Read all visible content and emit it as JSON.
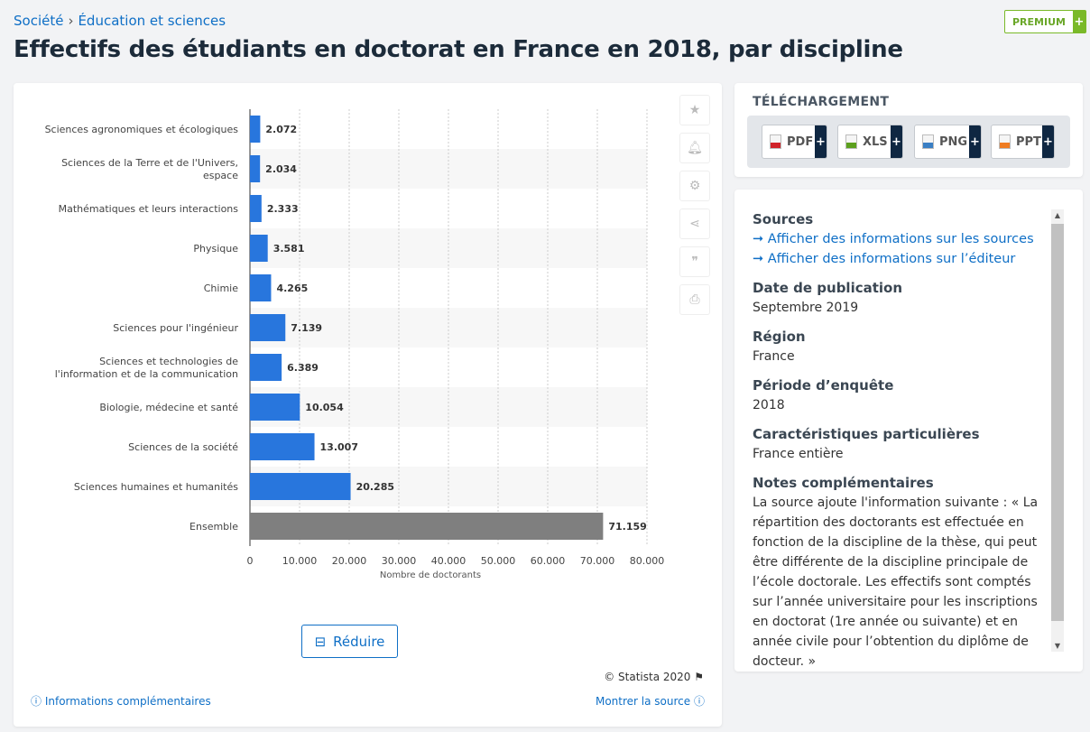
{
  "breadcrumb": [
    "Société",
    "Éducation et sciences"
  ],
  "title": "Effectifs des étudiants en doctorat en France en 2018, par discipline",
  "premium": {
    "label": "PREMIUM",
    "plus": "+"
  },
  "chart_data": {
    "type": "bar",
    "orientation": "horizontal",
    "categories": [
      "Sciences agronomiques et écologiques",
      "Sciences de la Terre et de l'Univers, espace",
      "Mathématiques et leurs interactions",
      "Physique",
      "Chimie",
      "Sciences pour l'ingénieur",
      "Sciences et technologies de l'information et de la communication",
      "Biologie, médecine et santé",
      "Sciences de la société",
      "Sciences humaines et humanités",
      "Ensemble"
    ],
    "values": [
      2072,
      2034,
      2333,
      3581,
      4265,
      7139,
      6389,
      10054,
      13007,
      20285,
      71159
    ],
    "value_labels": [
      "2.072",
      "2.034",
      "2.333",
      "3.581",
      "4.265",
      "7.139",
      "6.389",
      "10.054",
      "13.007",
      "20.285",
      "71.159"
    ],
    "colors": {
      "default": "#2876dd",
      "total": "#7f7f7f"
    },
    "xlim": [
      0,
      80000
    ],
    "xticks": [
      "0",
      "10.000",
      "20.000",
      "30.000",
      "40.000",
      "50.000",
      "60.000",
      "70.000",
      "80.000"
    ],
    "xlabel": "Nombre de doctorants",
    "grid": true
  },
  "chart_actions": [
    "star-icon",
    "bell-icon",
    "gear-icon",
    "share-icon",
    "quote-icon",
    "print-icon"
  ],
  "reduce_label": "Réduire",
  "copyright": "© Statista 2020",
  "footer": {
    "info": "Informations complémentaires",
    "source": "Montrer la source"
  },
  "download": {
    "title": "TÉLÉCHARGEMENT",
    "formats": [
      {
        "label": "PDF",
        "color": "#d0232a"
      },
      {
        "label": "XLS",
        "color": "#5ca01e"
      },
      {
        "label": "PNG",
        "color": "#3a7fc4"
      },
      {
        "label": "PPT",
        "color": "#ef7c22"
      }
    ],
    "plus": "+"
  },
  "info": {
    "sources_title": "Sources",
    "source_link": "➞ Afficher des informations sur les sources",
    "publisher_link": "➞ Afficher des informations sur l’éditeur",
    "pub_title": "Date de publication",
    "pub_value": "Septembre 2019",
    "region_title": "Région",
    "region_value": "France",
    "period_title": "Période d’enquête",
    "period_value": "2018",
    "char_title": "Caractéristiques particulières",
    "char_value": "France entière",
    "notes_title": "Notes complémentaires",
    "notes_value": "La source ajoute l'information suivante : « La répartition des doctorants est effectuée en fonction de la discipline de la thèse, qui peut être différente de la discipline principale de l’école doctorale. Les effectifs sont comptés sur l’année universitaire pour les inscriptions en doctorat (1re année ou suivante) et en année civile pour l’obtention du diplôme de docteur. »"
  }
}
